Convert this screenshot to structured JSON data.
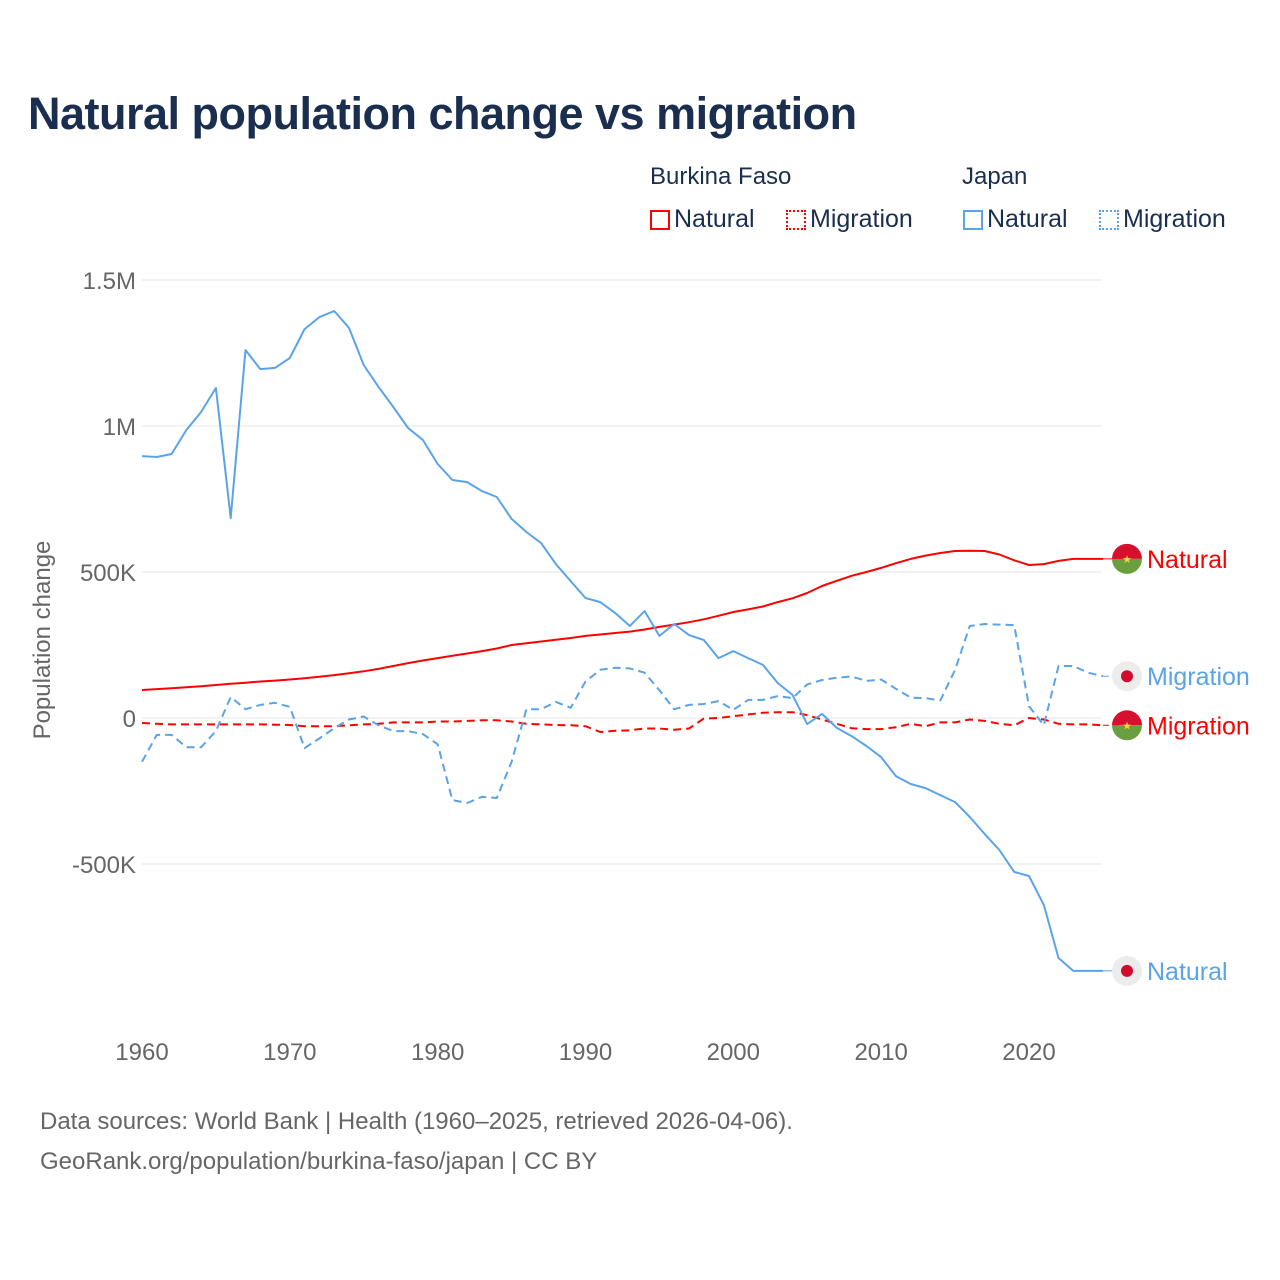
{
  "title": "Natural population change vs migration",
  "legend": {
    "groups": [
      {
        "name": "Burkina Faso",
        "items": [
          "Natural",
          "Migration"
        ],
        "color": "#ff0000"
      },
      {
        "name": "Japan",
        "items": [
          "Natural",
          "Migration"
        ],
        "color": "#5aa3e8"
      }
    ]
  },
  "source_lines": [
    "Data sources: World Bank | Health (1960–2025, retrieved 2026-04-06).",
    "GeoRank.org/population/burkina-faso/japan | CC BY"
  ],
  "chart_data": {
    "type": "line",
    "title": "Natural population change vs migration",
    "xlabel": "",
    "ylabel": "Population change",
    "xlim": [
      1960,
      2025
    ],
    "ylim": [
      -1000000,
      1500000
    ],
    "xticks": [
      1960,
      1970,
      1980,
      1990,
      2000,
      2010,
      2020
    ],
    "xtick_labels": [
      "1960",
      "1970",
      "1980",
      "1990",
      "2000",
      "2010",
      "2020"
    ],
    "yticks": [
      1500000,
      1000000,
      500000,
      0,
      -500000
    ],
    "ytick_labels": [
      "1.5M",
      "1M",
      "500K",
      "0",
      "-500K"
    ],
    "grid": true,
    "start_year": 1960,
    "series": [
      {
        "name": "Burkina Faso Natural",
        "end_label": "Natural",
        "country": "Burkina Faso",
        "color": "#ff0000",
        "dash": false,
        "flag": "burkina",
        "values": [
          96,
          99,
          102,
          105,
          109,
          113,
          117,
          121,
          125,
          128,
          132,
          136,
          141,
          147,
          153,
          160,
          168,
          178,
          188,
          197,
          205,
          213,
          221,
          229,
          238,
          250,
          256,
          262,
          268,
          274,
          281,
          286,
          291,
          296,
          303,
          312,
          320,
          328,
          338,
          350,
          363,
          372,
          382,
          397,
          410,
          428,
          452,
          470,
          487,
          500,
          514,
          530,
          545,
          556,
          565,
          572,
          573,
          572,
          560,
          540,
          524,
          527,
          538,
          545,
          545,
          545
        ]
      },
      {
        "name": "Burkina Faso Migration",
        "end_label": "Migration",
        "country": "Burkina Faso",
        "color": "#ff0000",
        "dash": true,
        "flag": "burkina",
        "values": [
          -17,
          -20,
          -22,
          -22,
          -22,
          -22,
          -22,
          -22,
          -22,
          -23,
          -24,
          -28,
          -28,
          -28,
          -25,
          -22,
          -20,
          -15,
          -15,
          -15,
          -12,
          -12,
          -10,
          -8,
          -8,
          -12,
          -20,
          -22,
          -24,
          -25,
          -28,
          -48,
          -44,
          -42,
          -36,
          -36,
          -40,
          -36,
          -2,
          0,
          6,
          12,
          18,
          20,
          20,
          10,
          -5,
          -20,
          -35,
          -38,
          -38,
          -32,
          -20,
          -28,
          -15,
          -15,
          -5,
          -10,
          -20,
          -25,
          0,
          -5,
          -20,
          -22,
          -22,
          -25
        ]
      },
      {
        "name": "Japan Natural",
        "end_label": "Natural",
        "country": "Japan",
        "color": "#5aa3e8",
        "dash": false,
        "flag": "japan",
        "values": [
          897,
          894,
          904,
          986,
          1048,
          1130,
          685,
          1260,
          1195,
          1199,
          1233,
          1332,
          1373,
          1394,
          1336,
          1209,
          1134,
          1065,
          993,
          952,
          870,
          815,
          808,
          777,
          757,
          682,
          637,
          599,
          527,
          469,
          411,
          397,
          360,
          315,
          366,
          281,
          322,
          284,
          267,
          205,
          229,
          205,
          182,
          120,
          79,
          -21,
          14,
          -34,
          -62,
          -96,
          -134,
          -199,
          -226,
          -240,
          -264,
          -288,
          -339,
          -397,
          -452,
          -527,
          -541,
          -640,
          -822,
          -866,
          -866,
          -866
        ]
      },
      {
        "name": "Japan Migration",
        "end_label": "Migration",
        "country": "Japan",
        "color": "#5aa3e8",
        "dash": true,
        "flag": "japan",
        "values": [
          -150,
          -58,
          -58,
          -100,
          -100,
          -45,
          72,
          30,
          45,
          52,
          38,
          -103,
          -70,
          -35,
          -5,
          5,
          -25,
          -45,
          -45,
          -55,
          -90,
          -281,
          -291,
          -270,
          -274,
          -150,
          30,
          30,
          55,
          35,
          125,
          165,
          172,
          170,
          155,
          95,
          30,
          45,
          48,
          58,
          28,
          62,
          62,
          75,
          68,
          115,
          130,
          138,
          142,
          127,
          132,
          100,
          70,
          68,
          60,
          165,
          315,
          322,
          320,
          318,
          40,
          -25,
          178,
          178,
          155,
          143
        ]
      }
    ],
    "value_unit": "thousands"
  }
}
